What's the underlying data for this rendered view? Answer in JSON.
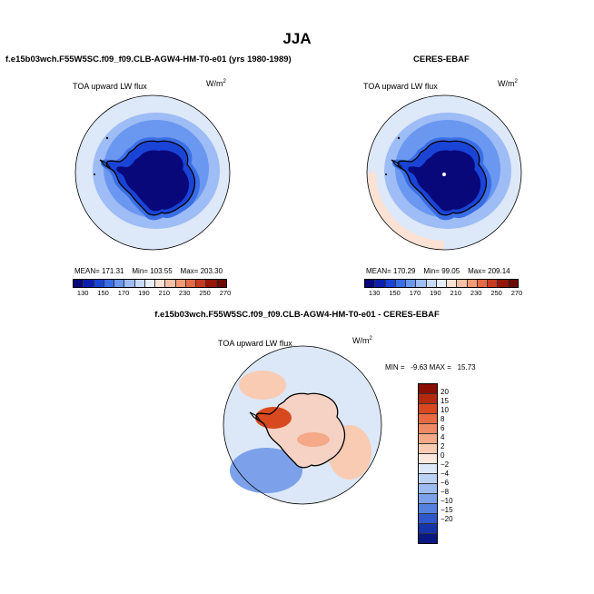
{
  "title": "JJA",
  "panels": [
    {
      "case_name": "f.e15b03wch.F55W5SC.f09_f09.CLB-AGW4-HM-T0-e01 (yrs 1980-1989)",
      "variable": "TOA upward LW flux",
      "units": "W/m",
      "units_exp": "2",
      "stats": {
        "mean_label": "MEAN=",
        "mean": "171.31",
        "min_label": "Min=",
        "min": "103.55",
        "max_label": "Max=",
        "max": "203.30"
      }
    },
    {
      "case_name": "CERES-EBAF",
      "variable": "TOA upward LW flux",
      "units": "W/m",
      "units_exp": "2",
      "stats": {
        "mean_label": "MEAN=",
        "mean": "170.29",
        "min_label": "Min=",
        "min": "99.05",
        "max_label": "Max=",
        "max": "209.14"
      }
    }
  ],
  "diff_panel": {
    "case_name": "f.e15b03wch.F55W5SC.f09_f09.CLB-AGW4-HM-T0-e01 - CERES-EBAF",
    "variable": "TOA upward LW flux",
    "units": "W/m",
    "units_exp": "2",
    "minmax": "MIN =   -9.63 MAX =   15.73"
  },
  "abs_colorbar": {
    "ticks": [
      "130",
      "150",
      "170",
      "190",
      "210",
      "230",
      "250",
      "270"
    ],
    "colors": [
      "#08087a",
      "#0a1fb0",
      "#1a44d6",
      "#3a6ee6",
      "#6a97f0",
      "#9ebcf5",
      "#c8daf8",
      "#e6eefb",
      "#fbe2d4",
      "#f7c0a4",
      "#f29a76",
      "#e56a48",
      "#c83a22",
      "#961608",
      "#6b0a02"
    ]
  },
  "diff_colorbar": {
    "labels": [
      "20",
      "15",
      "10",
      "8",
      "6",
      "4",
      "2",
      "0",
      "−2",
      "−4",
      "−6",
      "−8",
      "−10",
      "−15",
      "−20"
    ],
    "colors": [
      "#8a0e02",
      "#b52a0e",
      "#d9491f",
      "#e96a40",
      "#f08a62",
      "#f5a988",
      "#f9cbb2",
      "#fbe7dc",
      "#dce8f8",
      "#bcd2f4",
      "#9cbbf0",
      "#7ca1ea",
      "#5582e0",
      "#2e58cc",
      "#1434a8",
      "#081880"
    ]
  },
  "map_colors": {
    "ocean_outer": "#dde8f8",
    "ocean_mid": "#9ebcf5",
    "ocean_inner": "#6a97f0",
    "coast_band": "#3a6ee6",
    "continent_edge": "#1a44d6",
    "continent": "#08087a",
    "diff_ocean": "#dce8f8",
    "diff_ocean_blue": "#7ca1ea",
    "diff_ocean_red": "#f9cbb2",
    "diff_land": "#f5d2c4",
    "diff_hot": "#d9491f"
  }
}
